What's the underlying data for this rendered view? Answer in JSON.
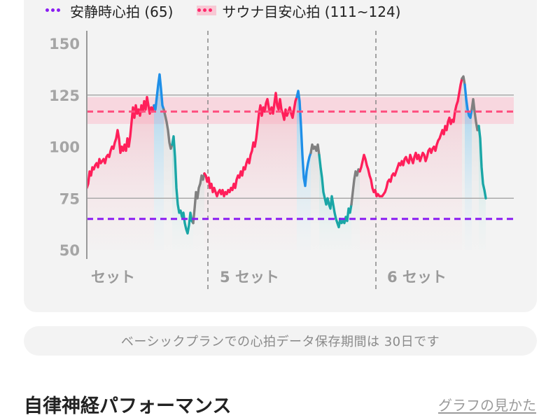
{
  "legend": {
    "resting": "安静時心拍 (65)",
    "sauna": "サウナ目安心拍 (111~124)"
  },
  "colors": {
    "resting_line": "#8a1cf2",
    "sauna_line": "#ff4f7f",
    "sauna_band": "#f9cbd6",
    "heart_rate_pink": "#ff1f5a",
    "heart_rate_blue": "#1f8fe8",
    "heart_rate_teal": "#1aa6a6",
    "heart_rate_gray": "#808080"
  },
  "chart_data": {
    "type": "line",
    "ylim": [
      45,
      155
    ],
    "y_ticks": [
      150,
      125,
      100,
      75,
      50
    ],
    "reference_lines": [
      {
        "name": "安静時心拍",
        "value": 65,
        "style": "dashed"
      },
      {
        "name": "サウナ目安心拍",
        "value": 117,
        "band": [
          111,
          124
        ],
        "style": "dashed"
      }
    ],
    "gridlines": [
      125,
      75
    ],
    "set_labels": [
      "セット",
      "5 セット",
      "6 セット"
    ],
    "series": [
      {
        "name": "心拍",
        "color": "pink",
        "points": [
          [
            0,
            80
          ],
          [
            2,
            82
          ],
          [
            4,
            88
          ],
          [
            6,
            86
          ],
          [
            8,
            90
          ],
          [
            10,
            89
          ],
          [
            12,
            91
          ],
          [
            14,
            92
          ],
          [
            16,
            90
          ],
          [
            18,
            94
          ],
          [
            20,
            92
          ],
          [
            22,
            93
          ],
          [
            24,
            94
          ],
          [
            26,
            92
          ],
          [
            28,
            95
          ],
          [
            30,
            96
          ],
          [
            32,
            95
          ],
          [
            34,
            98
          ],
          [
            36,
            100
          ],
          [
            38,
            99
          ],
          [
            40,
            102
          ],
          [
            42,
            104
          ],
          [
            44,
            108
          ],
          [
            46,
            104
          ],
          [
            48,
            97
          ],
          [
            50,
            100
          ],
          [
            52,
            98
          ],
          [
            54,
            101
          ],
          [
            56,
            98
          ],
          [
            58,
            104
          ],
          [
            60,
            100
          ],
          [
            62,
            105
          ],
          [
            64,
            112
          ],
          [
            66,
            119
          ],
          [
            68,
            114
          ],
          [
            70,
            120
          ],
          [
            72,
            116
          ],
          [
            74,
            118
          ],
          [
            76,
            115
          ],
          [
            78,
            120
          ],
          [
            80,
            117
          ],
          [
            82,
            122
          ],
          [
            84,
            118
          ],
          [
            86,
            124
          ],
          [
            88,
            120
          ],
          [
            90,
            116
          ],
          [
            92,
            119
          ],
          [
            94,
            117
          ],
          [
            96,
            120
          ]
        ]
      },
      {
        "name": "心拍",
        "color": "blue",
        "points": [
          [
            96,
            120
          ],
          [
            98,
            118
          ],
          [
            100,
            124
          ],
          [
            102,
            130
          ],
          [
            104,
            135
          ],
          [
            106,
            128
          ],
          [
            108,
            120
          ],
          [
            110,
            118
          ]
        ]
      },
      {
        "name": "心拍",
        "color": "gray",
        "points": [
          [
            110,
            118
          ],
          [
            112,
            115
          ],
          [
            114,
            112
          ],
          [
            116,
            108
          ],
          [
            118,
            102
          ],
          [
            120,
            99
          ],
          [
            122,
            101
          ]
        ]
      },
      {
        "name": "心拍",
        "color": "teal",
        "points": [
          [
            122,
            101
          ],
          [
            124,
            105
          ],
          [
            126,
            95
          ],
          [
            128,
            80
          ],
          [
            130,
            72
          ],
          [
            132,
            68
          ],
          [
            134,
            69
          ],
          [
            136,
            66
          ],
          [
            138,
            68
          ],
          [
            140,
            63
          ],
          [
            142,
            60
          ],
          [
            144,
            58
          ],
          [
            146,
            62
          ],
          [
            148,
            68
          ],
          [
            150,
            64
          ],
          [
            152,
            63
          ]
        ]
      },
      {
        "name": "心拍",
        "color": "gray",
        "points": [
          [
            152,
            63
          ],
          [
            154,
            70
          ],
          [
            156,
            78
          ],
          [
            158,
            75
          ],
          [
            160,
            80
          ],
          [
            162,
            82
          ],
          [
            164,
            86
          ],
          [
            166,
            84
          ],
          [
            168,
            87
          ]
        ]
      },
      {
        "name": "心拍",
        "color": "pink",
        "points": [
          [
            168,
            87
          ],
          [
            170,
            86
          ],
          [
            172,
            83
          ],
          [
            174,
            85
          ],
          [
            176,
            80
          ],
          [
            178,
            82
          ],
          [
            180,
            78
          ],
          [
            182,
            80
          ],
          [
            184,
            78
          ],
          [
            186,
            76
          ],
          [
            188,
            78
          ],
          [
            190,
            79
          ],
          [
            192,
            77
          ],
          [
            194,
            79
          ],
          [
            196,
            76
          ],
          [
            198,
            78
          ],
          [
            200,
            77
          ],
          [
            202,
            79
          ],
          [
            204,
            78
          ],
          [
            206,
            80
          ],
          [
            208,
            79
          ],
          [
            210,
            82
          ],
          [
            212,
            80
          ],
          [
            214,
            84
          ],
          [
            216,
            86
          ],
          [
            218,
            85
          ],
          [
            220,
            88
          ],
          [
            222,
            86
          ],
          [
            224,
            90
          ],
          [
            226,
            89
          ],
          [
            228,
            92
          ],
          [
            230,
            94
          ],
          [
            232,
            92
          ],
          [
            234,
            96
          ],
          [
            236,
            98
          ],
          [
            238,
            102
          ],
          [
            240,
            100
          ],
          [
            242,
            104
          ],
          [
            244,
            110
          ],
          [
            246,
            116
          ],
          [
            248,
            120
          ],
          [
            250,
            115
          ],
          [
            252,
            119
          ],
          [
            254,
            117
          ],
          [
            256,
            121
          ],
          [
            258,
            123
          ],
          [
            260,
            119
          ],
          [
            262,
            116
          ],
          [
            264,
            119
          ],
          [
            266,
            116
          ],
          [
            268,
            121
          ],
          [
            270,
            126
          ],
          [
            272,
            120
          ],
          [
            274,
            118
          ],
          [
            276,
            123
          ],
          [
            278,
            118
          ],
          [
            280,
            116
          ],
          [
            282,
            113
          ],
          [
            284,
            118
          ],
          [
            286,
            115
          ],
          [
            288,
            117
          ],
          [
            290,
            119
          ],
          [
            292,
            116
          ],
          [
            294,
            114
          ],
          [
            296,
            118
          ],
          [
            298,
            122
          ],
          [
            300,
            124
          ]
        ]
      },
      {
        "name": "心拍",
        "color": "blue",
        "points": [
          [
            300,
            124
          ],
          [
            302,
            127
          ],
          [
            304,
            122
          ],
          [
            306,
            110
          ],
          [
            308,
            96
          ],
          [
            310,
            85
          ],
          [
            312,
            81
          ],
          [
            314,
            88
          ],
          [
            316,
            92
          ],
          [
            318,
            95
          ],
          [
            320,
            97
          ]
        ]
      },
      {
        "name": "心拍",
        "color": "gray",
        "points": [
          [
            320,
            97
          ],
          [
            322,
            101
          ],
          [
            324,
            99
          ],
          [
            326,
            100
          ],
          [
            328,
            98
          ],
          [
            330,
            101
          ],
          [
            332,
            96
          ]
        ]
      },
      {
        "name": "心拍",
        "color": "teal",
        "points": [
          [
            332,
            96
          ],
          [
            334,
            90
          ],
          [
            336,
            85
          ],
          [
            338,
            78
          ],
          [
            340,
            75
          ],
          [
            342,
            72
          ],
          [
            344,
            75
          ],
          [
            346,
            72
          ],
          [
            348,
            70
          ],
          [
            350,
            76
          ],
          [
            352,
            72
          ],
          [
            354,
            68
          ],
          [
            356,
            65
          ],
          [
            358,
            63
          ],
          [
            360,
            61
          ],
          [
            362,
            65
          ],
          [
            364,
            63
          ],
          [
            366,
            64
          ],
          [
            368,
            63
          ],
          [
            370,
            66
          ],
          [
            372,
            64
          ],
          [
            374,
            70
          ],
          [
            376,
            68
          ],
          [
            378,
            72
          ]
        ]
      },
      {
        "name": "心拍",
        "color": "gray",
        "points": [
          [
            378,
            72
          ],
          [
            380,
            78
          ],
          [
            382,
            84
          ],
          [
            384,
            88
          ],
          [
            386,
            86
          ],
          [
            388,
            89
          ],
          [
            390,
            88
          ]
        ]
      },
      {
        "name": "心拍",
        "color": "pink",
        "points": [
          [
            390,
            88
          ],
          [
            392,
            90
          ],
          [
            394,
            93
          ],
          [
            396,
            96
          ],
          [
            398,
            94
          ],
          [
            400,
            91
          ],
          [
            402,
            89
          ],
          [
            404,
            86
          ],
          [
            406,
            84
          ],
          [
            408,
            80
          ],
          [
            410,
            78
          ],
          [
            412,
            79
          ],
          [
            414,
            76
          ],
          [
            416,
            77
          ],
          [
            418,
            76
          ],
          [
            420,
            76
          ],
          [
            422,
            76
          ],
          [
            424,
            77
          ],
          [
            426,
            78
          ],
          [
            428,
            80
          ],
          [
            430,
            83
          ],
          [
            432,
            84
          ],
          [
            434,
            83
          ],
          [
            436,
            86
          ],
          [
            438,
            87
          ],
          [
            440,
            86
          ],
          [
            442,
            88
          ],
          [
            444,
            90
          ],
          [
            446,
            92
          ],
          [
            448,
            91
          ],
          [
            450,
            93
          ],
          [
            452,
            91
          ],
          [
            454,
            94
          ],
          [
            456,
            95
          ],
          [
            458,
            93
          ],
          [
            460,
            92
          ],
          [
            462,
            96
          ],
          [
            464,
            94
          ],
          [
            466,
            92
          ],
          [
            468,
            95
          ],
          [
            470,
            97
          ],
          [
            472,
            94
          ],
          [
            474,
            96
          ],
          [
            476,
            93
          ],
          [
            478,
            95
          ],
          [
            480,
            97
          ],
          [
            482,
            96
          ],
          [
            484,
            93
          ],
          [
            486,
            95
          ],
          [
            488,
            98
          ],
          [
            490,
            99
          ],
          [
            492,
            97
          ],
          [
            494,
            99
          ],
          [
            496,
            100
          ],
          [
            498,
            98
          ],
          [
            500,
            101
          ],
          [
            502,
            103
          ],
          [
            504,
            104
          ],
          [
            506,
            106
          ],
          [
            508,
            108
          ],
          [
            510,
            106
          ],
          [
            512,
            110
          ],
          [
            514,
            108
          ],
          [
            516,
            112
          ],
          [
            518,
            114
          ],
          [
            520,
            111
          ],
          [
            522,
            113
          ],
          [
            524,
            112
          ],
          [
            526,
            117
          ],
          [
            528,
            120
          ],
          [
            530,
            122
          ],
          [
            532,
            126
          ],
          [
            534,
            130
          ],
          [
            536,
            133
          ]
        ]
      },
      {
        "name": "心拍",
        "color": "gray",
        "points": [
          [
            536,
            133
          ],
          [
            538,
            134
          ],
          [
            540,
            130
          ]
        ]
      },
      {
        "name": "心拍",
        "color": "blue",
        "points": [
          [
            540,
            130
          ],
          [
            542,
            123
          ],
          [
            544,
            118
          ],
          [
            546,
            115
          ],
          [
            548,
            114
          ],
          [
            550,
            118
          ]
        ]
      },
      {
        "name": "心拍",
        "color": "gray",
        "points": [
          [
            550,
            118
          ],
          [
            552,
            123
          ],
          [
            554,
            117
          ],
          [
            556,
            112
          ],
          [
            558,
            108
          ],
          [
            560,
            110
          ]
        ]
      },
      {
        "name": "心拍",
        "color": "teal",
        "points": [
          [
            560,
            110
          ],
          [
            562,
            104
          ],
          [
            564,
            90
          ],
          [
            566,
            82
          ],
          [
            568,
            79
          ],
          [
            570,
            75
          ]
        ]
      }
    ]
  },
  "notice": "ベーシックプランでの心拍データ保存期間は 30日です",
  "section": {
    "title": "自律神経パフォーマンス",
    "help_link": "グラフの見かた"
  }
}
